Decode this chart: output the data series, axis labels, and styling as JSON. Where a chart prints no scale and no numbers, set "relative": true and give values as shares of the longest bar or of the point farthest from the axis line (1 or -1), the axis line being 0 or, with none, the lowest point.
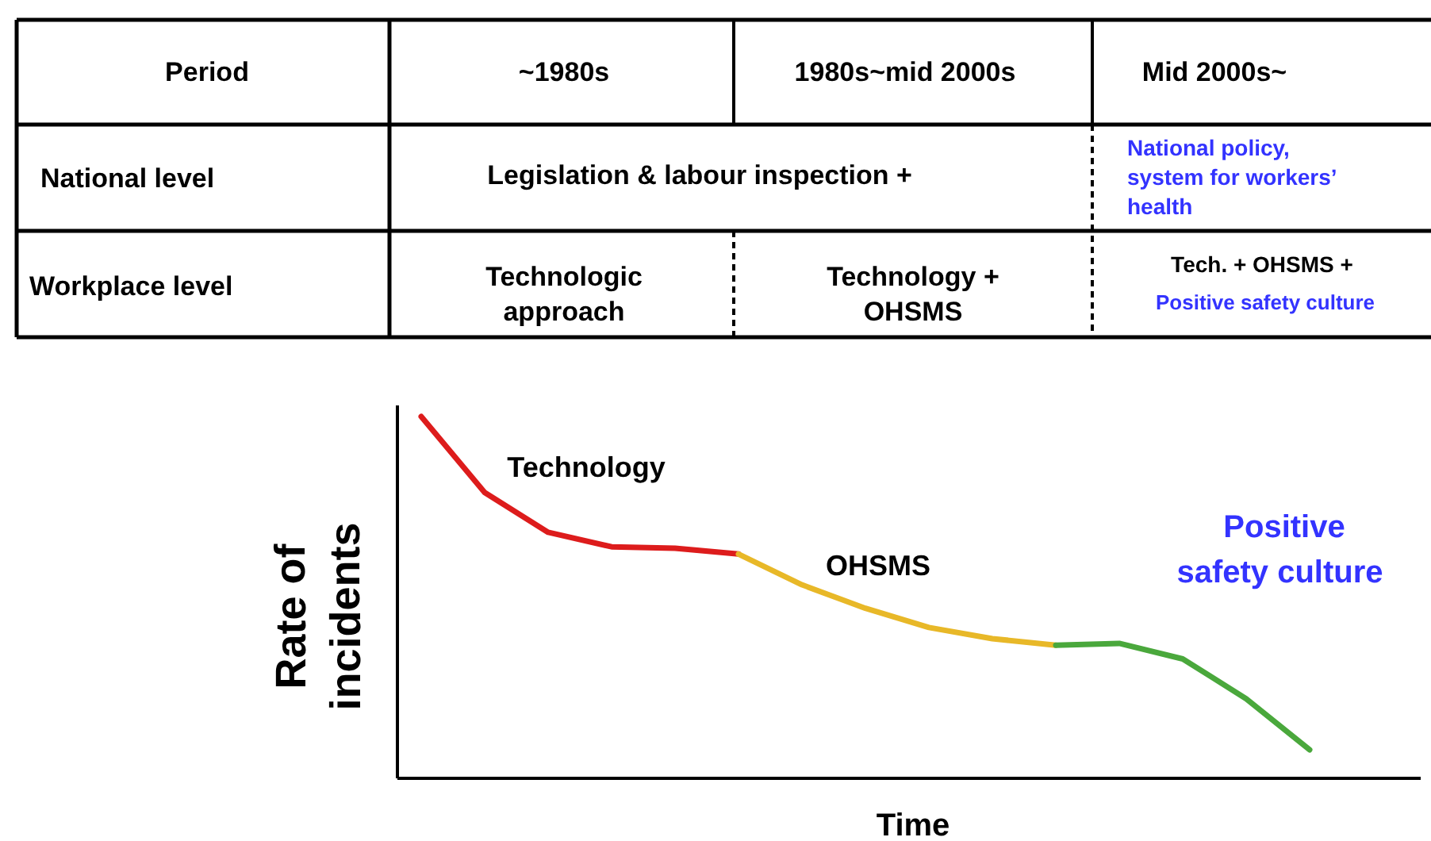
{
  "chart_data": [
    {
      "type": "other",
      "annotations": [
        "Period",
        "~1980s",
        "1980s~mid 2000s",
        "Mid 2000s~",
        "National level",
        "Legislation &  labour inspection    +",
        "National policy,\nsystem for workers’\nhealth",
        "Workplace level",
        "Technologic\napproach",
        "Technology +\nOHSMS",
        "Tech. + OHSMS +",
        "Positive safety culture"
      ]
    },
    {
      "type": "line",
      "relative": true,
      "xlabel": "Time",
      "ylabel": "Rate of\nincidents",
      "categories": [
        null,
        null,
        null,
        null,
        null,
        null,
        null,
        null,
        null,
        null,
        null,
        null,
        null,
        null,
        null
      ],
      "series": [
        {
          "name": "Technology",
          "color": "#dd1c1c",
          "values": [
            1.0,
            0.79,
            0.68,
            0.64,
            0.636,
            0.62,
            null,
            null,
            null,
            null,
            null,
            null,
            null,
            null,
            null
          ]
        },
        {
          "name": "OHSMS",
          "color": "#e8b828",
          "values": [
            null,
            null,
            null,
            null,
            null,
            0.62,
            0.535,
            0.47,
            0.417,
            0.386,
            0.368,
            null,
            null,
            null,
            null
          ]
        },
        {
          "name": "Positive\nsafety  culture",
          "color": "#4aa83c",
          "values": [
            null,
            null,
            null,
            null,
            null,
            null,
            null,
            null,
            null,
            null,
            0.368,
            0.373,
            0.33,
            0.22,
            0.079
          ]
        }
      ]
    }
  ]
}
